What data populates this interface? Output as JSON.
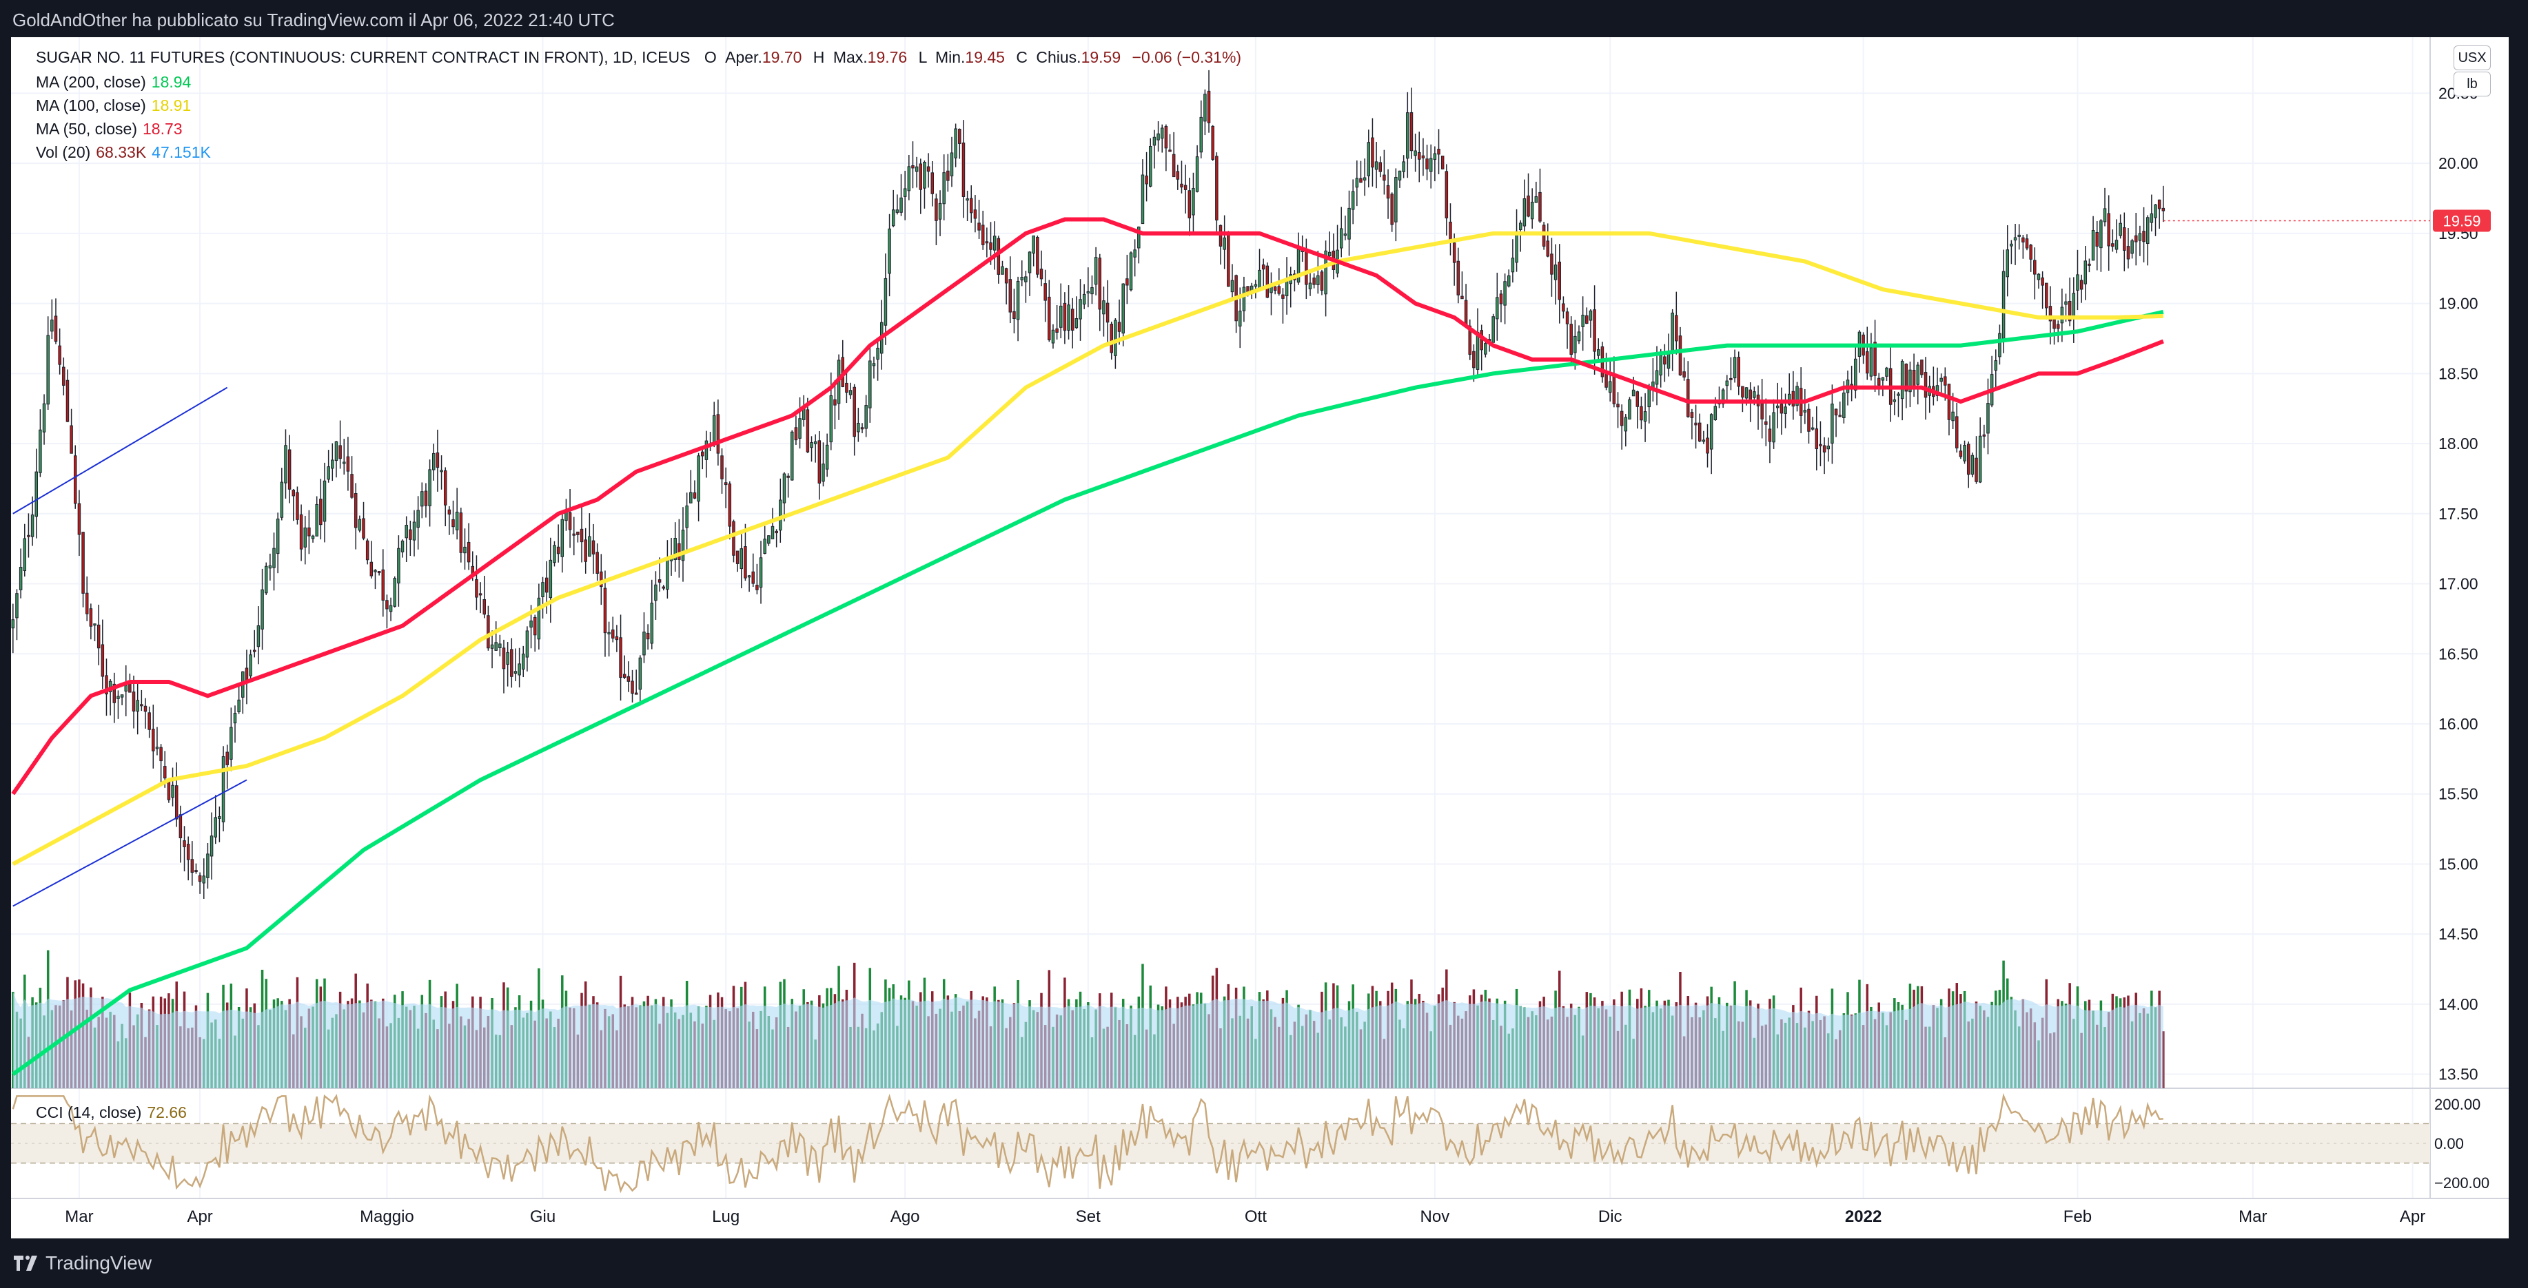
{
  "header": {
    "published": "GoldAndOther ha pubblicato su TradingView.com il Apr 06, 2022 21:40 UTC"
  },
  "footer": {
    "brand": "TradingView"
  },
  "legend": {
    "symbol": "SUGAR NO. 11 FUTURES (CONTINUOUS: CURRENT CONTRACT IN FRONT), 1D, ICEUS",
    "o_label": "O",
    "o_text": "Aper.",
    "o_val": "19.70",
    "h_label": "H",
    "h_text": "Max.",
    "h_val": "19.76",
    "l_label": "L",
    "l_text": "Min.",
    "l_val": "19.45",
    "c_label": "C",
    "c_text": "Chius.",
    "c_val": "19.59",
    "change": "−0.06 (−0.31%)",
    "ma200_label": "MA (200, close)",
    "ma200_val": "18.94",
    "ma100_label": "MA (100, close)",
    "ma100_val": "18.91",
    "ma50_label": "MA (50, close)",
    "ma50_val": "18.73",
    "vol_label": "Vol (20)",
    "vol_val": "68.33K",
    "vol_ma_val": "47.151K",
    "cci_label": "CCI (14, close)",
    "cci_val": "72.66"
  },
  "axis_buttons": {
    "currency": "USX",
    "unit": "lb"
  },
  "colors": {
    "up": "#26a69a",
    "up_body": "#3a8f5c",
    "down": "#b71c1c",
    "ma200": "#00e676",
    "ma100": "#ffeb3b",
    "ma50": "#ff1744",
    "vol_up": "#1b8a3a",
    "vol_down": "#8b2232",
    "vol_ma": "#b3dcf7",
    "cci": "#c9a97c",
    "last_price_tag": "#f23645",
    "trendline": "#1a2fd6"
  },
  "chart_data": {
    "type": "candlestick",
    "ylim": [
      13.4,
      20.9
    ],
    "price_ticks": [
      "20.50",
      "20.00",
      "19.50",
      "19.00",
      "18.50",
      "18.00",
      "17.50",
      "17.00",
      "16.50",
      "16.00",
      "15.50",
      "15.00",
      "14.50",
      "14.00",
      "13.50"
    ],
    "last_price": "19.59",
    "x_labels": [
      "Mar",
      "Apr",
      "Maggio",
      "Giu",
      "Lug",
      "Ago",
      "Set",
      "Ott",
      "Nov",
      "Dic",
      "2022",
      "Feb",
      "Mar",
      "Apr"
    ],
    "x_label_days": [
      17,
      48,
      96,
      136,
      183,
      229,
      276,
      319,
      365,
      410,
      475,
      530,
      575,
      616
    ],
    "anchors": [
      [
        0,
        16.7
      ],
      [
        5,
        17.6
      ],
      [
        10,
        18.9
      ],
      [
        15,
        18.0
      ],
      [
        18,
        16.9
      ],
      [
        24,
        16.3
      ],
      [
        30,
        16.2
      ],
      [
        35,
        16.0
      ],
      [
        42,
        15.4
      ],
      [
        48,
        14.8
      ],
      [
        52,
        15.3
      ],
      [
        55,
        15.8
      ],
      [
        62,
        16.6
      ],
      [
        66,
        17.2
      ],
      [
        70,
        17.9
      ],
      [
        74,
        17.2
      ],
      [
        80,
        17.6
      ],
      [
        84,
        18.0
      ],
      [
        90,
        17.3
      ],
      [
        96,
        16.9
      ],
      [
        101,
        17.3
      ],
      [
        108,
        17.8
      ],
      [
        113,
        17.5
      ],
      [
        118,
        17.0
      ],
      [
        123,
        16.6
      ],
      [
        130,
        16.4
      ],
      [
        136,
        16.9
      ],
      [
        142,
        17.5
      ],
      [
        148,
        17.2
      ],
      [
        154,
        16.5
      ],
      [
        160,
        16.3
      ],
      [
        166,
        17.0
      ],
      [
        172,
        17.3
      ],
      [
        176,
        17.9
      ],
      [
        180,
        18.2
      ],
      [
        184,
        17.4
      ],
      [
        190,
        17.0
      ],
      [
        196,
        17.5
      ],
      [
        202,
        18.2
      ],
      [
        207,
        17.8
      ],
      [
        212,
        18.5
      ],
      [
        217,
        18.1
      ],
      [
        222,
        18.8
      ],
      [
        226,
        19.6
      ],
      [
        232,
        20.0
      ],
      [
        237,
        19.7
      ],
      [
        242,
        20.2
      ],
      [
        246,
        19.6
      ],
      [
        252,
        19.4
      ],
      [
        256,
        18.9
      ],
      [
        262,
        19.5
      ],
      [
        266,
        18.8
      ],
      [
        272,
        18.9
      ],
      [
        278,
        19.2
      ],
      [
        282,
        18.6
      ],
      [
        286,
        19.2
      ],
      [
        290,
        19.8
      ],
      [
        294,
        20.3
      ],
      [
        298,
        19.9
      ],
      [
        302,
        19.7
      ],
      [
        306,
        20.4
      ],
      [
        310,
        19.5
      ],
      [
        314,
        19.0
      ],
      [
        320,
        19.2
      ],
      [
        326,
        18.9
      ],
      [
        330,
        19.4
      ],
      [
        334,
        19.1
      ],
      [
        338,
        19.3
      ],
      [
        342,
        19.5
      ],
      [
        348,
        20.1
      ],
      [
        354,
        19.6
      ],
      [
        358,
        20.3
      ],
      [
        362,
        19.9
      ],
      [
        366,
        20.1
      ],
      [
        370,
        19.3
      ],
      [
        374,
        18.6
      ],
      [
        380,
        18.8
      ],
      [
        384,
        19.3
      ],
      [
        388,
        19.8
      ],
      [
        392,
        19.6
      ],
      [
        396,
        19.2
      ],
      [
        400,
        18.6
      ],
      [
        404,
        18.9
      ],
      [
        408,
        18.6
      ],
      [
        412,
        18.2
      ],
      [
        418,
        18.3
      ],
      [
        422,
        18.4
      ],
      [
        426,
        18.8
      ],
      [
        430,
        18.3
      ],
      [
        434,
        17.9
      ],
      [
        438,
        18.3
      ],
      [
        442,
        18.6
      ],
      [
        446,
        18.3
      ],
      [
        450,
        18.1
      ],
      [
        454,
        18.3
      ],
      [
        458,
        18.4
      ],
      [
        462,
        18.0
      ],
      [
        466,
        18.1
      ],
      [
        470,
        18.3
      ],
      [
        474,
        18.7
      ],
      [
        478,
        18.5
      ],
      [
        482,
        18.4
      ],
      [
        488,
        18.5
      ],
      [
        492,
        18.3
      ],
      [
        496,
        18.4
      ],
      [
        500,
        17.9
      ],
      [
        504,
        17.8
      ],
      [
        508,
        18.5
      ],
      [
        512,
        19.3
      ],
      [
        516,
        19.5
      ],
      [
        520,
        19.2
      ],
      [
        524,
        18.8
      ],
      [
        528,
        19.0
      ],
      [
        532,
        19.3
      ],
      [
        536,
        19.6
      ],
      [
        540,
        19.5
      ],
      [
        544,
        19.4
      ],
      [
        548,
        19.6
      ],
      [
        552,
        19.59
      ]
    ],
    "ma200": [
      [
        0,
        13.5
      ],
      [
        30,
        14.1
      ],
      [
        60,
        14.4
      ],
      [
        90,
        15.1
      ],
      [
        120,
        15.6
      ],
      [
        150,
        16.0
      ],
      [
        180,
        16.4
      ],
      [
        210,
        16.8
      ],
      [
        240,
        17.2
      ],
      [
        270,
        17.6
      ],
      [
        300,
        17.9
      ],
      [
        330,
        18.2
      ],
      [
        360,
        18.4
      ],
      [
        380,
        18.5
      ],
      [
        410,
        18.6
      ],
      [
        440,
        18.7
      ],
      [
        470,
        18.7
      ],
      [
        500,
        18.7
      ],
      [
        530,
        18.8
      ],
      [
        552,
        18.94
      ]
    ],
    "ma100": [
      [
        0,
        15.0
      ],
      [
        20,
        15.3
      ],
      [
        40,
        15.6
      ],
      [
        60,
        15.7
      ],
      [
        80,
        15.9
      ],
      [
        100,
        16.2
      ],
      [
        120,
        16.6
      ],
      [
        140,
        16.9
      ],
      [
        160,
        17.1
      ],
      [
        180,
        17.3
      ],
      [
        200,
        17.5
      ],
      [
        220,
        17.7
      ],
      [
        240,
        17.9
      ],
      [
        260,
        18.4
      ],
      [
        280,
        18.7
      ],
      [
        300,
        18.9
      ],
      [
        320,
        19.1
      ],
      [
        340,
        19.3
      ],
      [
        360,
        19.4
      ],
      [
        380,
        19.5
      ],
      [
        400,
        19.5
      ],
      [
        420,
        19.5
      ],
      [
        440,
        19.4
      ],
      [
        460,
        19.3
      ],
      [
        480,
        19.1
      ],
      [
        500,
        19.0
      ],
      [
        520,
        18.9
      ],
      [
        540,
        18.9
      ],
      [
        552,
        18.91
      ]
    ],
    "ma50": [
      [
        0,
        15.5
      ],
      [
        10,
        15.9
      ],
      [
        20,
        16.2
      ],
      [
        30,
        16.3
      ],
      [
        40,
        16.3
      ],
      [
        50,
        16.2
      ],
      [
        60,
        16.3
      ],
      [
        70,
        16.4
      ],
      [
        80,
        16.5
      ],
      [
        90,
        16.6
      ],
      [
        100,
        16.7
      ],
      [
        110,
        16.9
      ],
      [
        120,
        17.1
      ],
      [
        130,
        17.3
      ],
      [
        140,
        17.5
      ],
      [
        150,
        17.6
      ],
      [
        160,
        17.8
      ],
      [
        170,
        17.9
      ],
      [
        180,
        18.0
      ],
      [
        190,
        18.1
      ],
      [
        200,
        18.2
      ],
      [
        210,
        18.4
      ],
      [
        220,
        18.7
      ],
      [
        230,
        18.9
      ],
      [
        240,
        19.1
      ],
      [
        250,
        19.3
      ],
      [
        260,
        19.5
      ],
      [
        270,
        19.6
      ],
      [
        280,
        19.6
      ],
      [
        290,
        19.5
      ],
      [
        300,
        19.5
      ],
      [
        310,
        19.5
      ],
      [
        320,
        19.5
      ],
      [
        330,
        19.4
      ],
      [
        340,
        19.3
      ],
      [
        350,
        19.2
      ],
      [
        360,
        19.0
      ],
      [
        370,
        18.9
      ],
      [
        380,
        18.7
      ],
      [
        390,
        18.6
      ],
      [
        400,
        18.6
      ],
      [
        410,
        18.5
      ],
      [
        420,
        18.4
      ],
      [
        430,
        18.3
      ],
      [
        440,
        18.3
      ],
      [
        450,
        18.3
      ],
      [
        460,
        18.3
      ],
      [
        470,
        18.4
      ],
      [
        480,
        18.4
      ],
      [
        490,
        18.4
      ],
      [
        500,
        18.3
      ],
      [
        510,
        18.4
      ],
      [
        520,
        18.5
      ],
      [
        530,
        18.5
      ],
      [
        540,
        18.6
      ],
      [
        552,
        18.73
      ]
    ],
    "trendline_upper": [
      [
        0,
        17.5
      ],
      [
        55,
        18.4
      ]
    ],
    "trendline_lower": [
      [
        0,
        14.7
      ],
      [
        60,
        15.6
      ]
    ],
    "volume": {
      "ylim": [
        0,
        180000
      ]
    },
    "cci": {
      "ticks": [
        "200.00",
        "0.00",
        "−200.00"
      ],
      "ylim": [
        -280,
        280
      ]
    }
  }
}
